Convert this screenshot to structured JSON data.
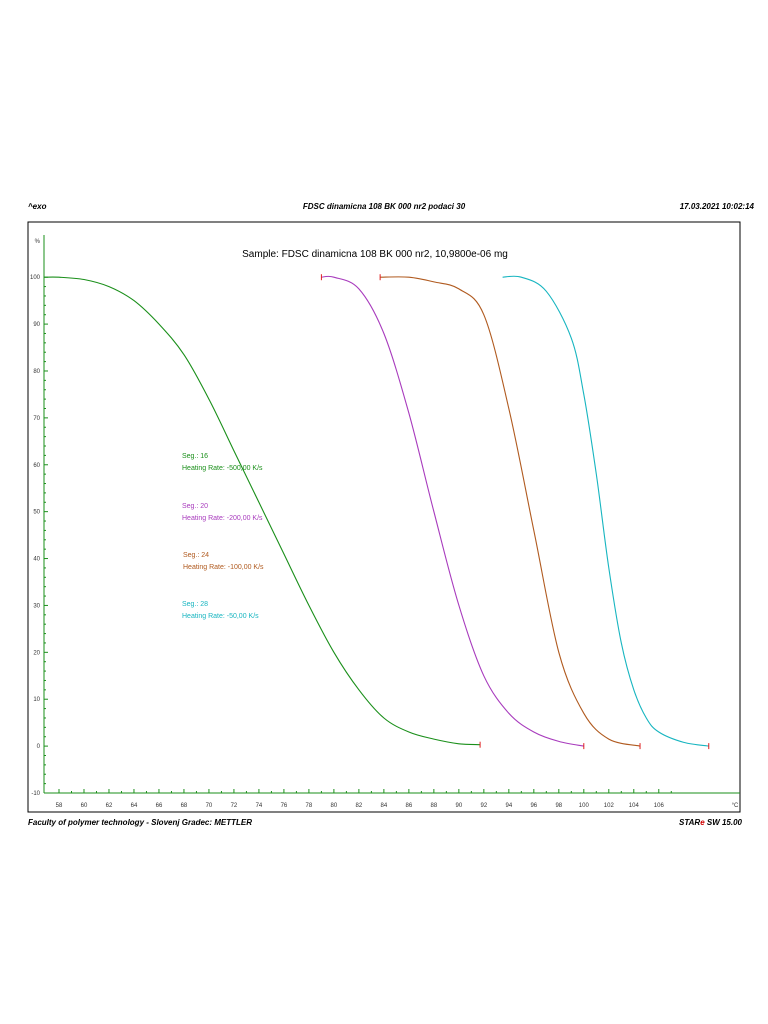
{
  "header": {
    "left": "^exo",
    "center": "FDSC dinamicna 108 BK 000 nr2 podaci 30",
    "right": "17.03.2021 10:02:14"
  },
  "footer": {
    "left": "Faculty of polymer technology - Slovenj Gradec: METTLER",
    "right_prefix": "STAR",
    "right_mark": "e",
    "right_suffix": " SW 15.00"
  },
  "chart_data": {
    "type": "line",
    "title": "Sample: FDSC dinamicna 108 BK 000 nr2, 10,9800e-06 mg",
    "xlabel": "°C",
    "ylabel": "%",
    "xlim": [
      56.8,
      112.5
    ],
    "ylim": [
      -10,
      109
    ],
    "x_ticks": [
      58,
      60,
      62,
      64,
      66,
      68,
      70,
      72,
      74,
      76,
      78,
      80,
      82,
      84,
      86,
      88,
      90,
      92,
      94,
      96,
      98,
      100,
      102,
      104,
      106
    ],
    "x_tick_labels": [
      "58",
      "60",
      "62",
      "64",
      "66",
      "68",
      "70",
      "72",
      "74",
      "76",
      "78",
      "80",
      "82",
      "84",
      "86",
      "88",
      "90",
      "92",
      "94",
      "96",
      "98",
      "100",
      "102",
      "104",
      "106"
    ],
    "y_ticks": [
      -10,
      0,
      10,
      20,
      30,
      40,
      50,
      60,
      70,
      80,
      90,
      100
    ],
    "y_tick_labels": [
      "-10",
      "0",
      "10",
      "20",
      "30",
      "40",
      "50",
      "60",
      "70",
      "80",
      "90",
      "100"
    ],
    "grid": false,
    "series": [
      {
        "name": "Seg.: 16",
        "label_line2": "Heating Rate: -500,00 K/s",
        "color": "#1a8f1a",
        "x": [
          56.8,
          58,
          60,
          62,
          64,
          66,
          68,
          70,
          72,
          74,
          76,
          78,
          80,
          82,
          84,
          86,
          88,
          90,
          91.7
        ],
        "y": [
          100,
          100,
          99.5,
          98,
          95,
          90,
          83.5,
          74,
          63,
          52,
          41,
          30,
          20,
          12,
          6,
          3,
          1.5,
          0.5,
          0.3
        ]
      },
      {
        "name": "Seg.: 20",
        "label_line2": "Heating Rate: -200,00 K/s",
        "color": "#a83bbd",
        "x": [
          79,
          80,
          82,
          84,
          86,
          88,
          90,
          92,
          94,
          96,
          98,
          100
        ],
        "y": [
          100,
          100,
          97.5,
          88,
          71,
          50,
          30,
          15,
          7,
          3,
          1,
          0
        ]
      },
      {
        "name": "Seg.: 24",
        "label_line2": "Heating Rate: -100,00 K/s",
        "color": "#b05a1f",
        "x": [
          83.7,
          86,
          88,
          90,
          92,
          94,
          96,
          98,
          100,
          102,
          104.5
        ],
        "y": [
          100,
          100,
          99,
          97.5,
          92,
          72,
          46,
          20,
          7,
          1.5,
          0
        ]
      },
      {
        "name": "Seg.: 28",
        "label_line2": "Heating Rate: -50,00 K/s",
        "color": "#17b5c0",
        "x": [
          93.5,
          95,
          97,
          99,
          100,
          101,
          102,
          103,
          104,
          105,
          106,
          108,
          110
        ],
        "y": [
          100,
          100,
          97,
          87,
          75,
          58,
          38,
          22,
          12,
          6,
          3,
          0.8,
          0
        ]
      }
    ],
    "legend_position": "left-middle"
  }
}
